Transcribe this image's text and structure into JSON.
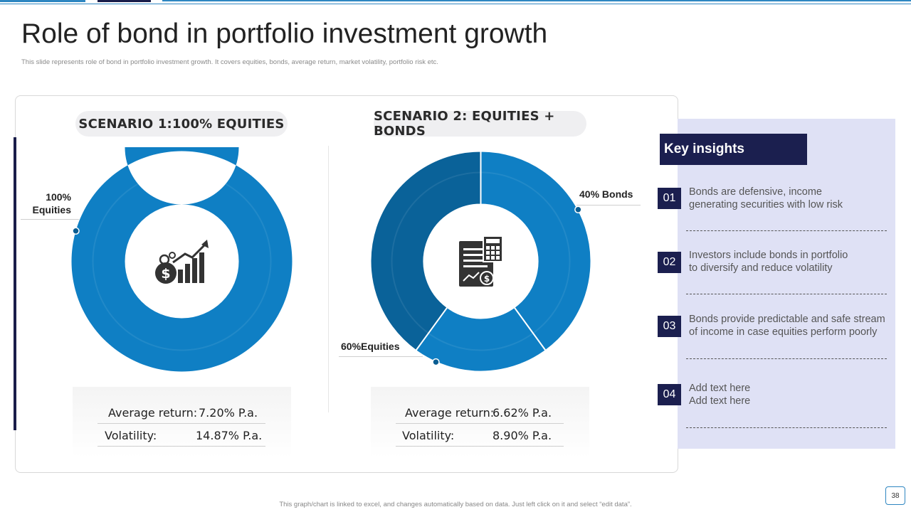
{
  "header": {
    "title": "Role of bond in portfolio investment growth",
    "subtitle": "This slide represents role of bond in portfolio investment growth. It covers equities, bonds, average return, market volatility, portfolio risk etc."
  },
  "colors": {
    "accent": "#0f7fc4",
    "dark_segment": "#0a6299",
    "navy": "#1b1f4f",
    "insights_bg": "#dfe1f5"
  },
  "chart_data": [
    {
      "type": "pie",
      "title": "SCENARIO 1:100% EQUITIES",
      "categories": [
        "Equities"
      ],
      "values": [
        100
      ],
      "data_labels": [
        "100% Equities"
      ],
      "center_icon": "money-growth-chart-icon",
      "stats": [
        {
          "label": "Average return:",
          "value": "7.20% P.a."
        },
        {
          "label": "Volatility:",
          "value": "14.87% P.a."
        }
      ]
    },
    {
      "type": "pie",
      "title": "SCENARIO 2: EQUITIES + BONDS",
      "categories": [
        "Bonds",
        "Equities"
      ],
      "values": [
        40,
        60
      ],
      "data_labels": [
        "40% Bonds",
        "60%Equities"
      ],
      "center_icon": "financial-report-calculator-icon",
      "stats": [
        {
          "label": "Average return:",
          "value": "6.62% P.a."
        },
        {
          "label": "Volatility:",
          "value": "8.90% P.a."
        }
      ]
    }
  ],
  "insights": {
    "title": "Key insights",
    "items": [
      {
        "num": "01",
        "line1": "Bonds are defensive, income",
        "line2": "generating securities with low risk"
      },
      {
        "num": "02",
        "line1": "Investors include bonds in portfolio",
        "line2": "to diversify and reduce volatility"
      },
      {
        "num": "03",
        "line1": "Bonds provide predictable and safe stream",
        "line2": "of income in case equities perform poorly"
      },
      {
        "num": "04",
        "line1": "Add text here",
        "line2": "Add text here"
      }
    ]
  },
  "footer": {
    "note": "This graph/chart is linked to excel, and changes automatically based on data. Just left click on it and select “edit data”.",
    "page": "38"
  }
}
